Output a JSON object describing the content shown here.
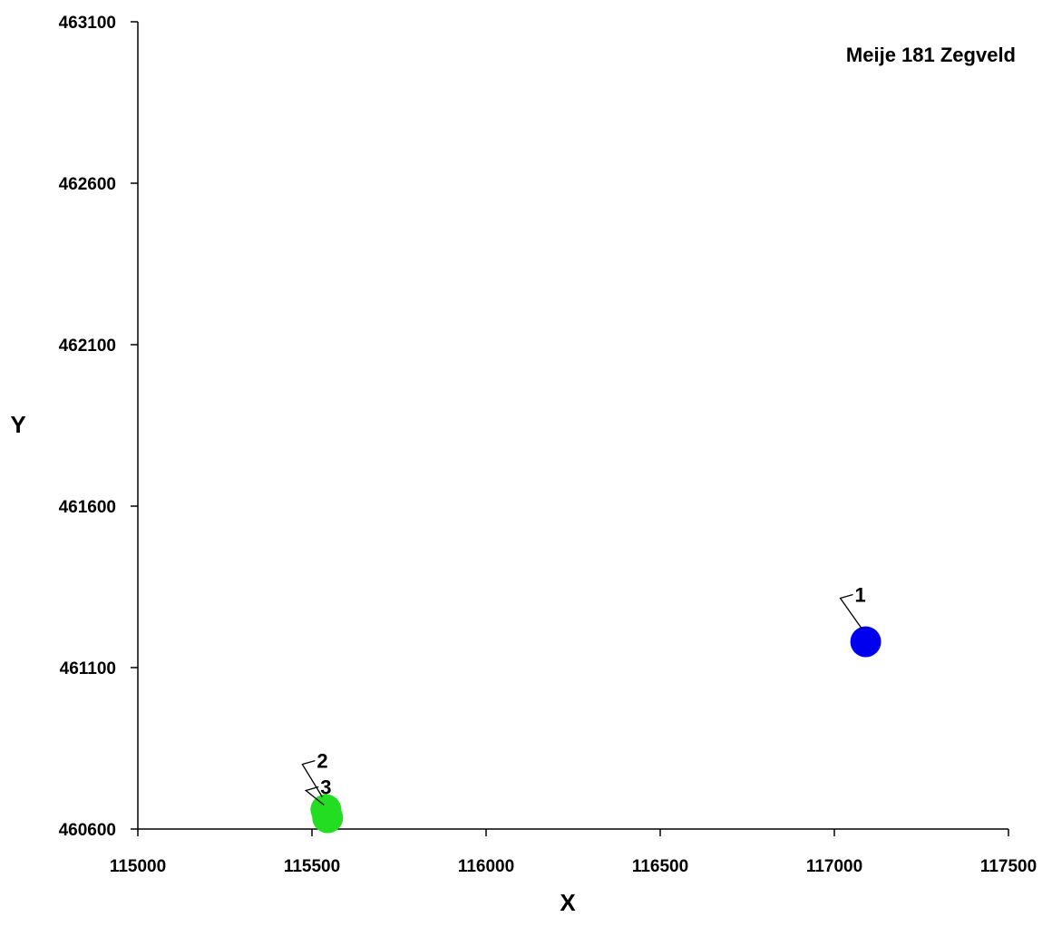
{
  "chart_data": {
    "type": "scatter",
    "title": "Meije 181 Zegveld",
    "xlabel": "X",
    "ylabel": "Y",
    "xlim": [
      115000,
      117500
    ],
    "ylim": [
      460600,
      463100
    ],
    "x_ticks": [
      115000,
      115500,
      116000,
      116500,
      117000,
      117500
    ],
    "y_ticks": [
      460600,
      461100,
      461600,
      462100,
      462600,
      463100
    ],
    "grid": false,
    "legend": "none",
    "points": [
      {
        "label": "1",
        "x": 117090,
        "y": 461180,
        "color": "#0000ee"
      },
      {
        "label": "2",
        "x": 115540,
        "y": 460660,
        "color": "#22dd22"
      },
      {
        "label": "3",
        "x": 115545,
        "y": 460635,
        "color": "#22dd22"
      }
    ]
  }
}
